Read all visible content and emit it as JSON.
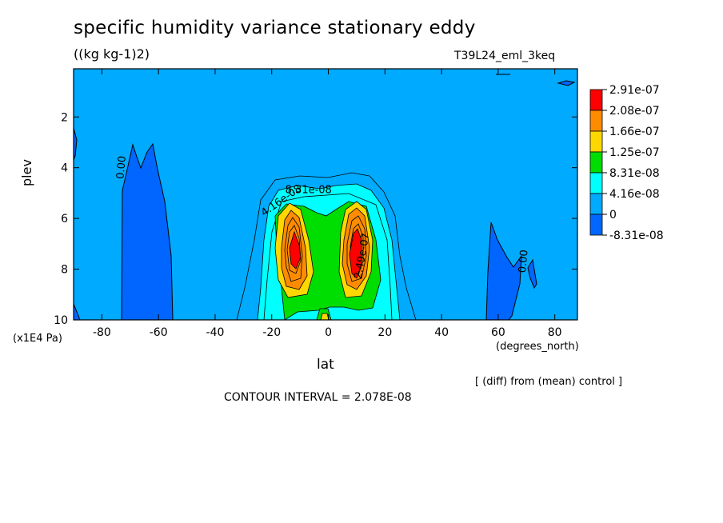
{
  "title": "specific humidity variance stationary eddy",
  "units": "((kg kg-1)2)",
  "experiment": "T39L24_eml_3keq",
  "xlabel": "lat",
  "ylabel": "plev",
  "y_units": "(x1E4 Pa)",
  "x_units": "(degrees_north)",
  "diff_note": "[ (diff) from (mean) control ]",
  "contour_interval": "CONTOUR INTERVAL = 2.078E-08",
  "chart_data": {
    "type": "heatmap",
    "title": "specific humidity variance stationary eddy",
    "xlabel": "lat",
    "ylabel": "plev",
    "xlim": [
      -90,
      88
    ],
    "ylim": [
      10,
      0.1
    ],
    "x_ticks": [
      -80,
      -60,
      -40,
      -20,
      0,
      20,
      40,
      60,
      80
    ],
    "x_tick_labels": [
      "-80",
      "-60",
      "-40",
      "-20",
      "0",
      "20",
      "40",
      "60",
      "80"
    ],
    "y_ticks": [
      2,
      4,
      6,
      8,
      10
    ],
    "y_tick_labels": [
      "2",
      "4",
      "6",
      "8",
      "10"
    ],
    "levels": [
      {
        "label": "2.91e-07",
        "color": "#ff0000"
      },
      {
        "label": "2.08e-07",
        "color": "#ff8c00"
      },
      {
        "label": "1.66e-07",
        "color": "#ffd700"
      },
      {
        "label": "1.25e-07",
        "color": "#00dd00"
      },
      {
        "label": "8.31e-08",
        "color": "#00ffff"
      },
      {
        "label": "4.16e-08",
        "color": "#00aaff"
      },
      {
        "label": "0",
        "color": "#0066ff"
      },
      {
        "label": "-8.31e-08",
        "color": "#0066ff"
      }
    ],
    "contour_labels": [
      {
        "text": "0.00",
        "lat": -72,
        "plev": 4.0,
        "rotate": -85
      },
      {
        "text": "0.00",
        "lat": 70,
        "plev": 7.7,
        "rotate": -85
      },
      {
        "text": "4.16e-08",
        "lat": -16,
        "plev": 5.4,
        "rotate": -35
      },
      {
        "text": "8.31e-08",
        "lat": -7,
        "plev": 5.0,
        "rotate": 0
      },
      {
        "text": "2.49e-07",
        "lat": 13,
        "plev": 7.5,
        "rotate": -80
      }
    ],
    "regions": [
      {
        "name": "southern-negative-band",
        "lat_range": [
          -72,
          -54
        ],
        "plev_range": [
          3.1,
          10
        ],
        "level": "-8.31e-08"
      },
      {
        "name": "northern-negative-band",
        "lat_range": [
          56,
          74
        ],
        "plev_range": [
          6.2,
          10
        ],
        "level": "-8.31e-08"
      },
      {
        "name": "equatorial-maximum-south",
        "center_lat": -11,
        "center_plev": 7.0,
        "peak_level": "2.91e-07"
      },
      {
        "name": "equatorial-maximum-north",
        "center_lat": 10,
        "center_plev": 7.0,
        "peak_level": "2.91e-07"
      }
    ]
  }
}
